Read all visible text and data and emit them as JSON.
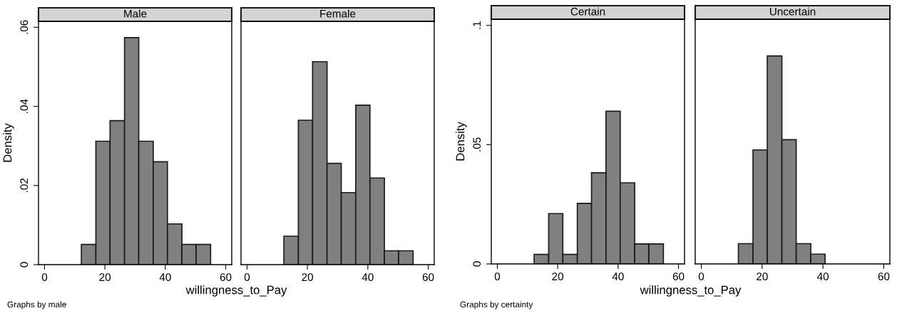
{
  "chart_data": [
    {
      "type": "histogram",
      "title": "Male",
      "ylabel": "Density",
      "xlabel": "willingness_to_Pay",
      "annotations": [
        "Graphs by male"
      ],
      "bins": [
        12.2,
        17.0,
        21.7,
        26.5,
        31.2,
        36.0,
        40.7,
        45.5,
        50.2,
        55.0
      ],
      "values": [
        0.0051,
        0.0312,
        0.0364,
        0.0574,
        0.0312,
        0.026,
        0.0103,
        0.0051,
        0.0051
      ],
      "color": "#808080",
      "xlim": [
        -2,
        62
      ],
      "xticks": [
        0,
        20,
        40,
        60
      ],
      "ylim": [
        0,
        0.0615
      ],
      "yticks": [
        {
          "value": 0,
          "label": "0"
        },
        {
          "value": 0.02,
          "label": ".02"
        },
        {
          "value": 0.04,
          "label": ".04"
        },
        {
          "value": 0.06,
          "label": ".06"
        }
      ],
      "grid": false
    },
    {
      "type": "histogram",
      "title": "Female",
      "bins": [
        12.2,
        17.0,
        21.7,
        26.5,
        31.2,
        36.0,
        40.7,
        45.5,
        50.2,
        55.0
      ],
      "values": [
        0.0072,
        0.0365,
        0.0513,
        0.0256,
        0.0182,
        0.0403,
        0.0219,
        0.0035,
        0.0035
      ],
      "color": "#808080",
      "xlim": [
        -2,
        62
      ],
      "xticks": [
        0,
        20,
        40,
        60
      ],
      "ylim": [
        0,
        0.0615
      ],
      "tick_labels": "x",
      "grid": false
    },
    {
      "type": "histogram",
      "title": "Certain",
      "ylabel": "Density",
      "xlabel": "willingness_to_Pay",
      "annotations": [
        "Graphs by certainty"
      ],
      "bins": [
        12.2,
        17.0,
        21.7,
        26.5,
        31.2,
        36.0,
        40.7,
        45.5,
        50.2,
        55.0
      ],
      "values": [
        0.004,
        0.0211,
        0.004,
        0.0254,
        0.0382,
        0.064,
        0.034,
        0.0084,
        0.0084
      ],
      "color": "#808080",
      "xlim": [
        -2,
        62
      ],
      "xticks": [
        0,
        20,
        40,
        60
      ],
      "ylim": [
        0,
        0.1026
      ],
      "yticks": [
        {
          "value": 0,
          "label": "0"
        },
        {
          "value": 0.05,
          "label": ".05"
        },
        {
          "value": 0.1,
          "label": ".1"
        }
      ],
      "grid": false
    },
    {
      "type": "histogram",
      "title": "Uncertain",
      "bins": [
        12.2,
        17.0,
        21.7,
        26.5,
        31.2,
        36.0,
        40.7
      ],
      "values": [
        0.0085,
        0.0478,
        0.0872,
        0.0521,
        0.0085,
        0.0041
      ],
      "color": "#808080",
      "xlim": [
        -2,
        62
      ],
      "xticks": [
        0,
        20,
        40,
        60
      ],
      "ylim": [
        0,
        0.1026
      ],
      "tick_labels": "x",
      "grid": false
    }
  ]
}
